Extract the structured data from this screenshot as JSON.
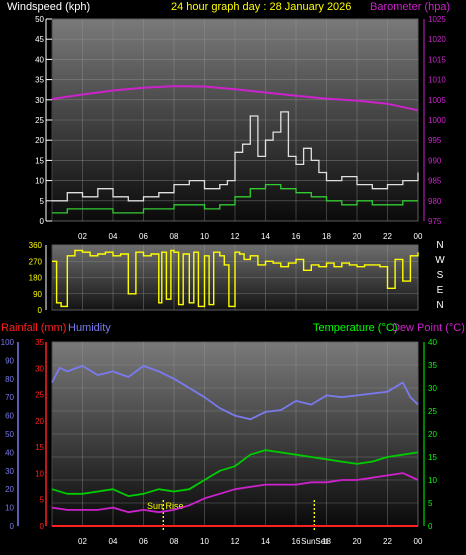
{
  "header": {
    "left_title": "Windspeed (kph)",
    "center_title": "24 hour graph day : 28 January 2026",
    "right_title": "Barometer (hpa)"
  },
  "colors": {
    "wind_gust": "#e0e0e0",
    "wind_avg": "#33cc33",
    "barometer": "#cc22cc",
    "direction": "#ffff00",
    "humidity": "#7a7aee",
    "temperature": "#00cc00",
    "dewpoint": "#cc22cc",
    "rainfall": "#ff2020",
    "left_axis": "#ff2020",
    "humidity_axis": "#7a7aee",
    "temp_axis": "#00ff00",
    "sun_marker": "#ffff00"
  },
  "x_ticks": [
    "02",
    "04",
    "06",
    "08",
    "10",
    "12",
    "14",
    "16",
    "18",
    "20",
    "22",
    "00"
  ],
  "compass": [
    "N",
    "W",
    "S",
    "E",
    "N"
  ],
  "bottom_labels": {
    "rainfall": "Rainfall (mm)",
    "humidity": "Humidity",
    "temperature": "Temperature (°C)",
    "dewpoint": "Dew Point (°C)",
    "sunrise": "Sun Rise",
    "sunset": "SunSet"
  },
  "chart_data": [
    {
      "type": "line",
      "panel": "wind_barometer",
      "x_range_hours": [
        0,
        24
      ],
      "left_axis": {
        "label": "Windspeed (kph)",
        "ylim": [
          0,
          50
        ],
        "ticks": [
          0,
          5,
          10,
          15,
          20,
          25,
          30,
          35,
          40,
          45,
          50
        ]
      },
      "right_axis": {
        "label": "Barometer (hpa)",
        "ylim": [
          975,
          1025
        ],
        "ticks": [
          975,
          980,
          985,
          990,
          995,
          1000,
          1005,
          1010,
          1015,
          1020,
          1025
        ]
      },
      "series": [
        {
          "axis": "left",
          "style": "gust",
          "x": [
            0,
            1,
            2,
            3,
            4,
            5,
            6,
            7,
            8,
            9,
            10,
            11,
            11.5,
            12,
            12.5,
            13,
            13.5,
            14,
            14.5,
            15,
            15.5,
            16,
            16.5,
            17,
            17.5,
            18,
            19,
            20,
            21,
            22,
            23,
            24
          ],
          "values": [
            5,
            7,
            6,
            8,
            6,
            5,
            6,
            7,
            9,
            10,
            8,
            9,
            10,
            17,
            19,
            26,
            16,
            20,
            22,
            27,
            16,
            14,
            18,
            15,
            12,
            10,
            11,
            9,
            8,
            9,
            10,
            12
          ]
        },
        {
          "axis": "left",
          "style": "avg",
          "x": [
            0,
            1,
            2,
            3,
            4,
            5,
            6,
            7,
            8,
            9,
            10,
            11,
            12,
            13,
            14,
            15,
            16,
            17,
            18,
            19,
            20,
            21,
            22,
            23,
            24
          ],
          "values": [
            2,
            3,
            3,
            3,
            2,
            2,
            3,
            3,
            4,
            4,
            3,
            4,
            6,
            8,
            9,
            8,
            7,
            6,
            5,
            4,
            5,
            4,
            4,
            5,
            5
          ]
        },
        {
          "axis": "right",
          "style": "barometer",
          "x": [
            0,
            2,
            4,
            6,
            8,
            10,
            12,
            14,
            16,
            18,
            20,
            22,
            24
          ],
          "values": [
            1005.2,
            1006.3,
            1007.3,
            1008,
            1008.4,
            1008.3,
            1007.6,
            1006.8,
            1006,
            1005.3,
            1004.8,
            1004,
            1002.4
          ]
        }
      ]
    },
    {
      "type": "line",
      "panel": "wind_direction",
      "x_range_hours": [
        0,
        24
      ],
      "ylim": [
        0,
        360
      ],
      "ticks": [
        0,
        90,
        180,
        270,
        360
      ],
      "series": [
        {
          "x": [
            0,
            0.3,
            0.6,
            1,
            1.5,
            2,
            2.5,
            3,
            3.5,
            4,
            4.5,
            5,
            5.5,
            6,
            6.5,
            7,
            7.2,
            7.5,
            7.8,
            8,
            8.3,
            8.6,
            9,
            9.3,
            9.6,
            10,
            10.3,
            10.6,
            11,
            11.3,
            11.6,
            12,
            12.3,
            12.6,
            13,
            13.5,
            14,
            14.5,
            15,
            15.5,
            16,
            16.5,
            17,
            17.5,
            18,
            18.5,
            19,
            19.5,
            20,
            20.5,
            21,
            21.5,
            22,
            22.5,
            23,
            23.5,
            24
          ],
          "values": [
            270,
            40,
            20,
            300,
            330,
            320,
            300,
            310,
            320,
            300,
            310,
            90,
            320,
            300,
            310,
            40,
            320,
            60,
            330,
            320,
            30,
            310,
            40,
            320,
            20,
            300,
            30,
            320,
            300,
            250,
            20,
            320,
            310,
            280,
            300,
            250,
            270,
            260,
            240,
            260,
            280,
            220,
            250,
            240,
            260,
            240,
            260,
            250,
            240,
            250,
            250,
            240,
            120,
            280,
            160,
            300,
            320
          ]
        }
      ]
    },
    {
      "type": "line",
      "panel": "temp_humidity",
      "x_range_hours": [
        0,
        24
      ],
      "left_axis": {
        "label": "Rainfall (mm)",
        "ylim": [
          0,
          35
        ],
        "ticks": [
          0,
          5,
          10,
          15,
          20,
          25,
          30,
          35
        ]
      },
      "humidity_axis": {
        "label": "Humidity",
        "ylim": [
          0,
          100
        ],
        "ticks": [
          0,
          10,
          20,
          30,
          40,
          50,
          60,
          70,
          80,
          90,
          100
        ]
      },
      "right_axis": {
        "label": "Temperature (°C)",
        "ylim": [
          0,
          40
        ],
        "ticks": [
          0,
          5,
          10,
          15,
          20,
          25,
          30,
          35,
          40
        ]
      },
      "series": [
        {
          "axis": "humidity",
          "style": "humidity",
          "x": [
            0,
            0.5,
            1,
            2,
            3,
            4,
            5,
            6,
            7,
            8,
            9,
            10,
            11,
            12,
            13,
            14,
            15,
            16,
            17,
            18,
            19,
            20,
            21,
            22,
            23,
            23.5,
            24
          ],
          "values": [
            78,
            86,
            84,
            87,
            82,
            84,
            81,
            87,
            84,
            80,
            75,
            70,
            64,
            60,
            58,
            62,
            63,
            68,
            66,
            71,
            70,
            71,
            72,
            73,
            78,
            70,
            66
          ]
        },
        {
          "axis": "right",
          "style": "temperature",
          "x": [
            0,
            1,
            2,
            3,
            4,
            5,
            6,
            7,
            8,
            9,
            10,
            11,
            12,
            13,
            14,
            15,
            16,
            17,
            18,
            19,
            20,
            21,
            22,
            23,
            24
          ],
          "values": [
            8,
            7,
            7,
            7.5,
            8,
            6.5,
            7,
            8,
            7.5,
            8,
            10,
            12,
            13,
            15.5,
            16.5,
            16,
            15.5,
            15,
            14.5,
            14,
            13.5,
            14,
            15,
            15.5,
            16
          ]
        },
        {
          "axis": "right",
          "style": "dewpoint",
          "x": [
            0,
            1,
            2,
            3,
            4,
            5,
            6,
            7,
            8,
            9,
            10,
            11,
            12,
            13,
            14,
            15,
            16,
            17,
            18,
            19,
            20,
            21,
            22,
            23,
            24
          ],
          "values": [
            4,
            3.5,
            3.5,
            3.5,
            4,
            3,
            3.5,
            3,
            3.5,
            4.5,
            6,
            7,
            8,
            8.5,
            9,
            9,
            9,
            9.5,
            9.5,
            10,
            10,
            10.5,
            11,
            11.5,
            10
          ]
        },
        {
          "axis": "left",
          "style": "rainfall",
          "x": [
            0,
            24
          ],
          "values": [
            0,
            0
          ]
        }
      ],
      "markers": [
        {
          "label": "Sun Rise",
          "hour": 7.3
        },
        {
          "label": "SunSet",
          "hour": 17.2
        }
      ]
    }
  ]
}
